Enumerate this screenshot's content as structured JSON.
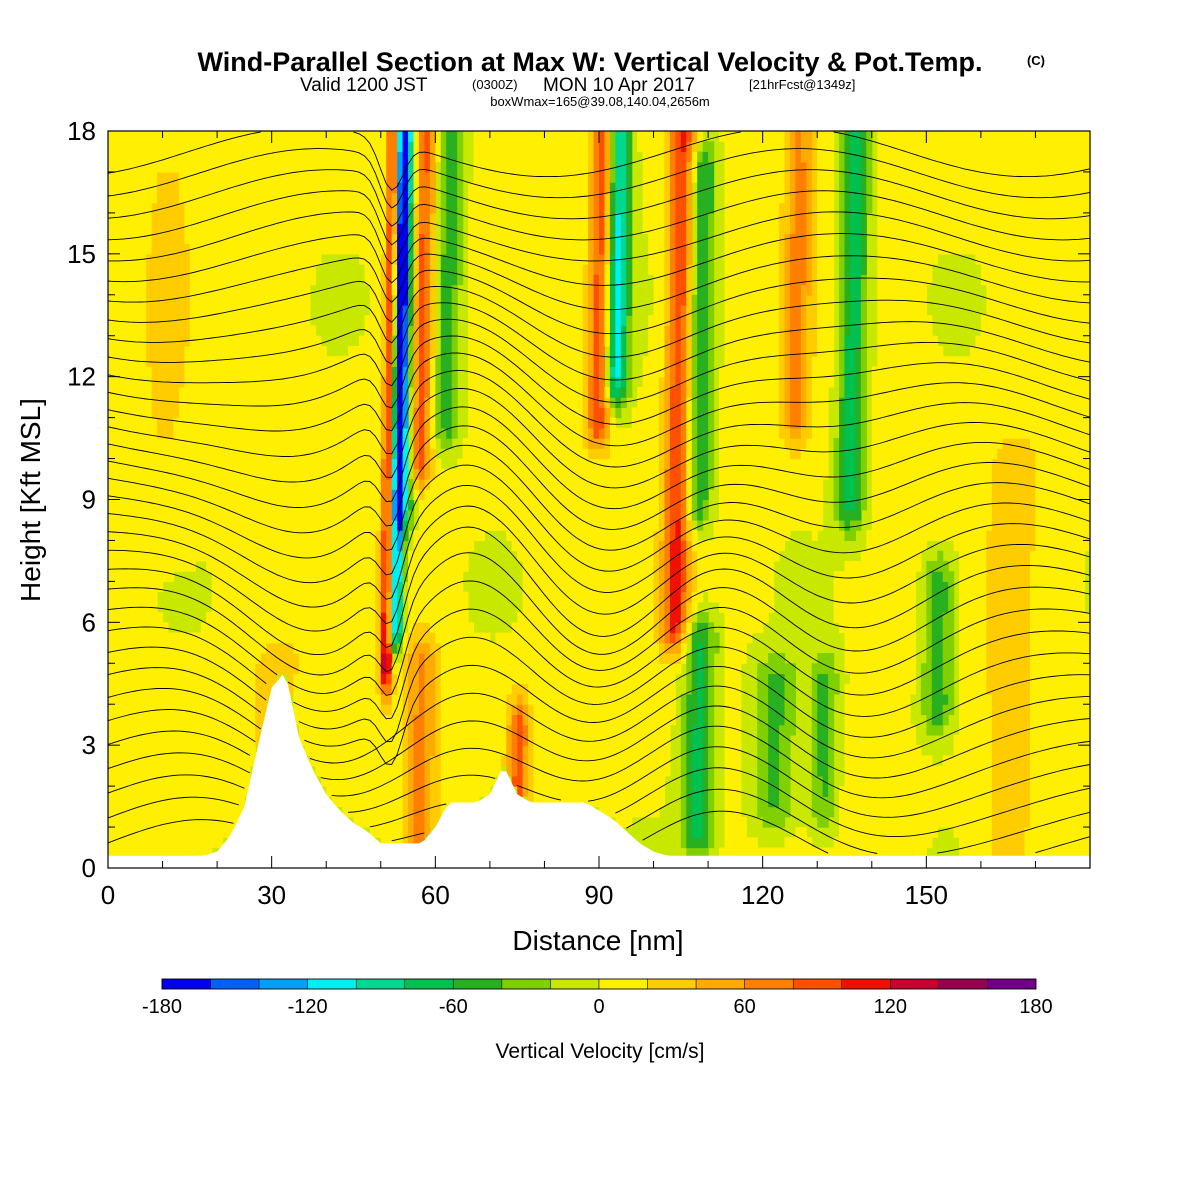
{
  "header": {
    "title": "Wind-Parallel Section at Max W: Vertical Velocity & Pot.Temp.",
    "copyright": "(C)",
    "valid_prefix": "Valid 1200 JST",
    "valid_utc": "(0300Z)",
    "valid_date": "MON 10 Apr 2017",
    "forecast": "[21hrFcst@1349z]",
    "boxwmax": "boxWmax=165@39.08,140.04,2656m"
  },
  "chart_data": {
    "type": "heatmap",
    "xlabel": "Distance [nm]",
    "ylabel": "Height [Kft MSL]",
    "xlim": [
      0,
      180
    ],
    "ylim": [
      0,
      18
    ],
    "x_ticks": [
      0,
      30,
      60,
      90,
      120,
      150
    ],
    "y_ticks": [
      0,
      3,
      6,
      9,
      12,
      15,
      18
    ],
    "colorbar": {
      "label": "Vertical Velocity [cm/s]",
      "ticks": [
        -180,
        -120,
        -60,
        0,
        60,
        120,
        180
      ],
      "levels": [
        -180,
        -160,
        -140,
        -120,
        -100,
        -80,
        -60,
        -40,
        -20,
        0,
        20,
        40,
        60,
        80,
        100,
        120,
        140,
        160,
        180
      ],
      "colors": [
        "#0000f0",
        "#0060f8",
        "#00a0f8",
        "#00f0f0",
        "#00d890",
        "#00c050",
        "#28b020",
        "#80d000",
        "#c8e800",
        "#ffef00",
        "#ffcc00",
        "#ffaa00",
        "#ff8000",
        "#ff5000",
        "#f01000",
        "#c80030",
        "#980050",
        "#700088"
      ]
    },
    "terrain_height_kft": [
      0.3,
      0.3,
      0.3,
      0.3,
      0.3,
      0.3,
      0.3,
      0.3,
      0.4,
      0.8,
      1.5,
      3.0,
      4.4,
      4.8,
      3.2,
      2.4,
      1.8,
      1.4,
      1.1,
      0.9,
      0.6,
      0.6,
      0.6,
      0.6,
      1.0,
      1.6,
      1.6,
      1.6,
      1.8,
      2.5,
      1.8,
      1.6,
      1.6,
      1.6,
      1.6,
      1.6,
      1.4,
      1.2,
      0.9,
      0.6,
      0.4,
      0.3,
      0.3,
      0.3,
      0.3,
      0.3,
      0.3,
      0.3,
      0.3,
      0.3,
      0.3,
      0.3,
      0.3,
      0.3,
      0.3,
      0.3,
      0.3,
      0.3,
      0.3,
      0.3,
      0.3,
      0.3,
      0.3,
      0.3,
      0.3,
      0.3,
      0.3,
      0.3,
      0.3,
      0.3,
      0.3,
      0.3,
      0.3
    ],
    "terrain_dx_nm": 2.5,
    "vertical_velocity_features": [
      {
        "x": 51,
        "kft_low": 5.0,
        "kft_high": 18,
        "w": 150,
        "width_nm": 1.2
      },
      {
        "x": 52.5,
        "kft_low": 6.0,
        "kft_high": 18,
        "w": -165,
        "width_nm": 1.4
      },
      {
        "x": 54,
        "kft_low": 9.0,
        "kft_high": 18,
        "w": -90,
        "width_nm": 2.0
      },
      {
        "x": 57,
        "kft_low": 10.0,
        "kft_high": 18,
        "w": 90,
        "width_nm": 2.2
      },
      {
        "x": 62,
        "kft_low": 11.0,
        "kft_high": 18,
        "w": -60,
        "width_nm": 2.5
      },
      {
        "x": 57,
        "kft_low": 0.5,
        "kft_high": 5.0,
        "w": 60,
        "width_nm": 3.0
      },
      {
        "x": 75,
        "kft_low": 1.0,
        "kft_high": 3.5,
        "w": 80,
        "width_nm": 2.0
      },
      {
        "x": 90,
        "kft_low": 11.0,
        "kft_high": 18,
        "w": 100,
        "width_nm": 2.2
      },
      {
        "x": 93,
        "kft_low": 12.0,
        "kft_high": 18,
        "w": -120,
        "width_nm": 2.2
      },
      {
        "x": 104,
        "kft_low": 6.0,
        "kft_high": 18,
        "w": 100,
        "width_nm": 2.5
      },
      {
        "x": 108,
        "kft_low": 9.0,
        "kft_high": 17,
        "w": -70,
        "width_nm": 2.5
      },
      {
        "x": 108,
        "kft_low": 1.0,
        "kft_high": 5.5,
        "w": -70,
        "width_nm": 3.0
      },
      {
        "x": 122,
        "kft_low": 1.5,
        "kft_high": 4.5,
        "w": -50,
        "width_nm": 4.0
      },
      {
        "x": 131,
        "kft_low": 1.5,
        "kft_high": 4.5,
        "w": -50,
        "width_nm": 2.5
      },
      {
        "x": 126,
        "kft_low": 11.0,
        "kft_high": 18,
        "w": 60,
        "width_nm": 2.5
      },
      {
        "x": 136,
        "kft_low": 9.0,
        "kft_high": 18,
        "w": -80,
        "width_nm": 2.5
      },
      {
        "x": 152,
        "kft_low": 4.0,
        "kft_high": 7.0,
        "w": -60,
        "width_nm": 3.0
      },
      {
        "x": 10,
        "kft_low": 8.5,
        "kft_high": 17,
        "w": 15,
        "width_nm": 6.0
      },
      {
        "x": 30,
        "kft_low": 0.5,
        "kft_high": 5.0,
        "w": 20,
        "width_nm": 6.0
      },
      {
        "x": 165,
        "kft_low": 0.3,
        "kft_high": 10,
        "w": 25,
        "width_nm": 5.0
      }
    ],
    "theta_contours_count": 34
  }
}
